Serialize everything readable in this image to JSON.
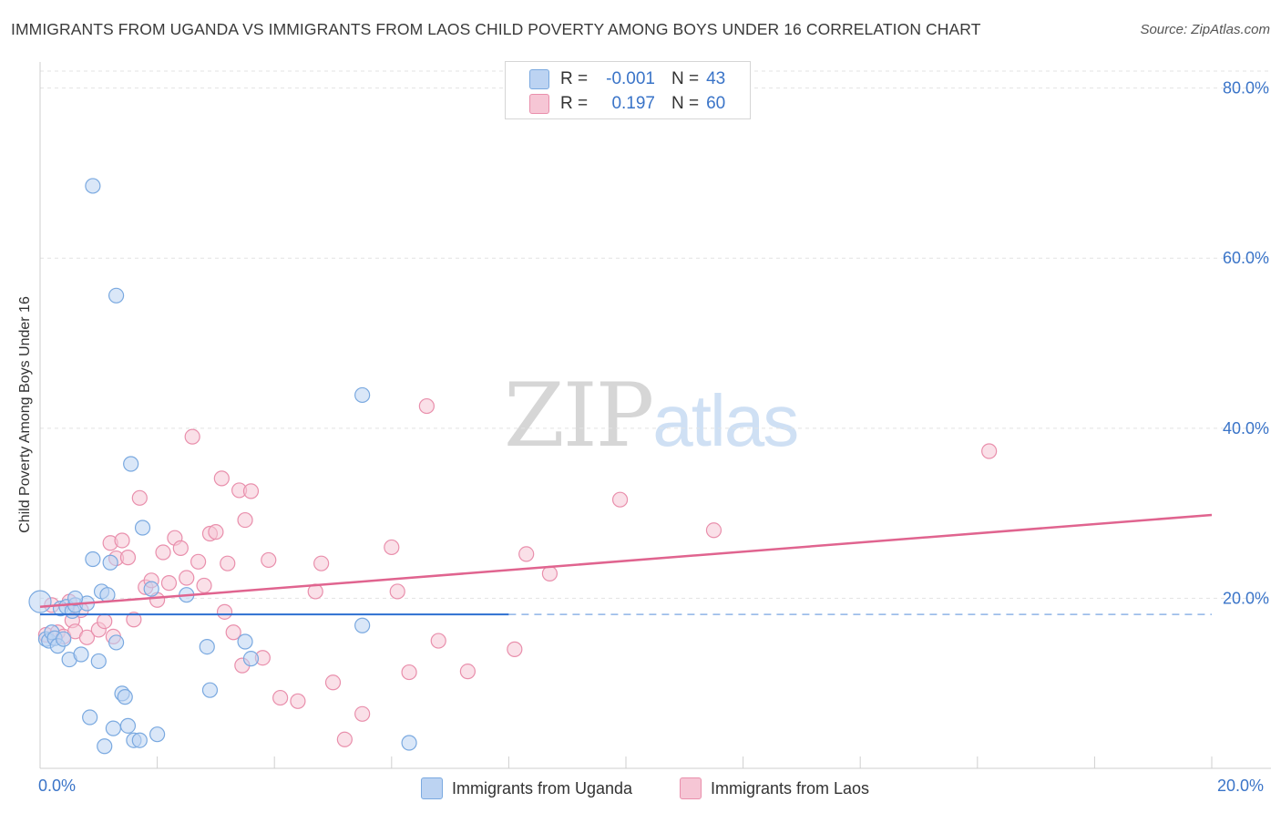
{
  "chart_data": {
    "type": "scatter",
    "title": "IMMIGRANTS FROM UGANDA VS IMMIGRANTS FROM LAOS CHILD POVERTY AMONG BOYS UNDER 16 CORRELATION CHART",
    "source": "Source: ZipAtlas.com",
    "xlabel": "",
    "ylabel": "Child Poverty Among Boys Under 16",
    "xlim": [
      0,
      20
    ],
    "ylim": [
      0,
      82
    ],
    "x_tick_labels": {
      "min": "0.0%",
      "max": "20.0%"
    },
    "y_ticks": [
      {
        "value": 20,
        "label": "20.0%"
      },
      {
        "value": 40,
        "label": "40.0%"
      },
      {
        "value": 60,
        "label": "60.0%"
      },
      {
        "value": 80,
        "label": "80.0%"
      }
    ],
    "watermark": {
      "zip": "ZIP",
      "atlas": "atlas"
    },
    "legend_stats": [
      {
        "r_label": "R =",
        "r_value": "-0.001",
        "n_label": "N =",
        "n_value": "43"
      },
      {
        "r_label": "R =",
        "r_value": "0.197",
        "n_label": "N =",
        "n_value": "60"
      }
    ],
    "series": [
      {
        "name": "Immigrants from Uganda",
        "color": "#7aa9e0",
        "fill": "#bcd3f2",
        "trend_color": "#2d6fd1",
        "trend": {
          "x0": 0,
          "y0": 18.1,
          "x1": 8,
          "y1": 18.1,
          "dash_to": 20
        },
        "points": [
          [
            0.0,
            19.6
          ],
          [
            0.1,
            15.2
          ],
          [
            0.15,
            15.0
          ],
          [
            0.2,
            16.0
          ],
          [
            0.25,
            15.3
          ],
          [
            0.3,
            14.4
          ],
          [
            0.35,
            18.8
          ],
          [
            0.4,
            15.2
          ],
          [
            0.45,
            19.0
          ],
          [
            0.5,
            12.8
          ],
          [
            0.55,
            18.5
          ],
          [
            0.6,
            19.2
          ],
          [
            0.7,
            13.4
          ],
          [
            0.8,
            19.4
          ],
          [
            0.85,
            6.0
          ],
          [
            0.9,
            24.6
          ],
          [
            0.9,
            68.5
          ],
          [
            1.0,
            12.6
          ],
          [
            1.05,
            20.8
          ],
          [
            1.1,
            2.6
          ],
          [
            1.15,
            20.4
          ],
          [
            1.2,
            24.2
          ],
          [
            1.25,
            4.7
          ],
          [
            1.3,
            55.6
          ],
          [
            1.3,
            14.8
          ],
          [
            1.4,
            8.8
          ],
          [
            1.45,
            8.4
          ],
          [
            1.5,
            5.0
          ],
          [
            1.55,
            35.8
          ],
          [
            1.6,
            3.3
          ],
          [
            1.7,
            3.3
          ],
          [
            1.75,
            28.3
          ],
          [
            1.9,
            21.1
          ],
          [
            2.0,
            4.0
          ],
          [
            2.5,
            20.4
          ],
          [
            2.85,
            14.3
          ],
          [
            2.9,
            9.2
          ],
          [
            3.5,
            14.9
          ],
          [
            3.6,
            12.9
          ],
          [
            5.5,
            43.9
          ],
          [
            5.5,
            16.8
          ],
          [
            6.3,
            3.0
          ],
          [
            0.6,
            20.0
          ]
        ]
      },
      {
        "name": "Immigrants from Laos",
        "color": "#e98fac",
        "fill": "#f6c6d5",
        "trend_color": "#e0648f",
        "trend": {
          "x0": 0,
          "y0": 19.0,
          "x1": 20,
          "y1": 29.8
        },
        "points": [
          [
            0.1,
            15.7
          ],
          [
            0.2,
            19.2
          ],
          [
            0.3,
            16.0
          ],
          [
            0.4,
            15.5
          ],
          [
            0.5,
            19.6
          ],
          [
            0.55,
            17.4
          ],
          [
            0.6,
            16.1
          ],
          [
            0.7,
            18.6
          ],
          [
            0.8,
            15.4
          ],
          [
            1.0,
            16.3
          ],
          [
            1.1,
            17.3
          ],
          [
            1.2,
            26.5
          ],
          [
            1.25,
            15.5
          ],
          [
            1.3,
            24.7
          ],
          [
            1.4,
            26.8
          ],
          [
            1.5,
            24.8
          ],
          [
            1.6,
            17.5
          ],
          [
            1.7,
            31.8
          ],
          [
            1.8,
            21.3
          ],
          [
            1.9,
            22.1
          ],
          [
            2.0,
            19.8
          ],
          [
            2.1,
            25.4
          ],
          [
            2.2,
            21.8
          ],
          [
            2.3,
            27.1
          ],
          [
            2.4,
            25.9
          ],
          [
            2.5,
            22.4
          ],
          [
            2.6,
            39.0
          ],
          [
            2.7,
            24.3
          ],
          [
            2.8,
            21.5
          ],
          [
            2.9,
            27.6
          ],
          [
            3.0,
            27.8
          ],
          [
            3.1,
            34.1
          ],
          [
            3.15,
            18.4
          ],
          [
            3.2,
            24.1
          ],
          [
            3.3,
            16.0
          ],
          [
            3.4,
            32.7
          ],
          [
            3.45,
            12.1
          ],
          [
            3.5,
            29.2
          ],
          [
            3.6,
            32.6
          ],
          [
            3.8,
            13.0
          ],
          [
            3.9,
            24.5
          ],
          [
            4.1,
            8.3
          ],
          [
            4.4,
            7.9
          ],
          [
            4.7,
            20.8
          ],
          [
            4.8,
            24.1
          ],
          [
            5.0,
            10.1
          ],
          [
            5.2,
            3.4
          ],
          [
            5.5,
            6.4
          ],
          [
            6.0,
            26.0
          ],
          [
            6.1,
            20.8
          ],
          [
            6.3,
            11.3
          ],
          [
            6.6,
            42.6
          ],
          [
            6.8,
            15.0
          ],
          [
            7.3,
            11.4
          ],
          [
            8.1,
            14.0
          ],
          [
            8.3,
            25.2
          ],
          [
            8.7,
            22.9
          ],
          [
            9.9,
            31.6
          ],
          [
            11.5,
            28.0
          ],
          [
            16.2,
            37.3
          ]
        ]
      }
    ]
  }
}
